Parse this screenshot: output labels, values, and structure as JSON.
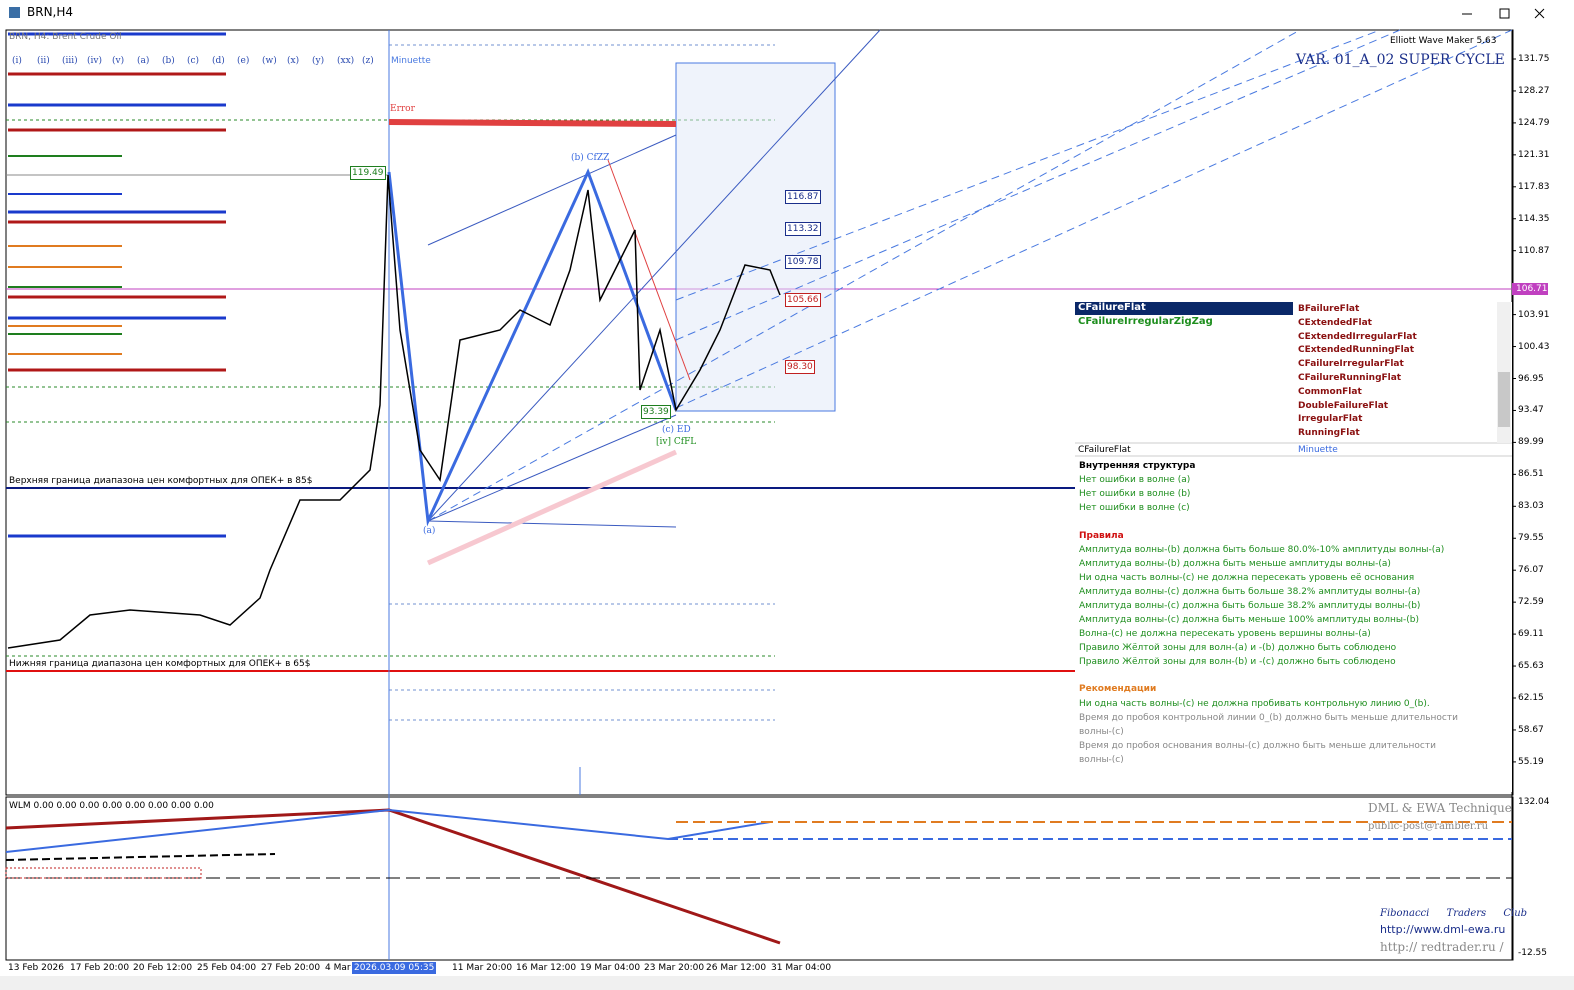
{
  "window": {
    "title": "BRN,H4"
  },
  "chart": {
    "symbol_label": "BRN, H4: Brent Crude Oil",
    "wave_buttons": [
      "(i)",
      "(ii)",
      "(iii)",
      "(iv)",
      "(v)",
      "(a)",
      "(b)",
      "(c)",
      "(d)",
      "(e)",
      "(w)",
      "(x)",
      "(y)",
      "(xx)",
      "(z)"
    ],
    "degree": "Minuette",
    "tool_name": "Elliott Wave Maker 5.63",
    "variant": "VAR. 01_A_02 SUPER CYCLE",
    "upper_line_label": "Верхняя граница диапазона цен комфортных для ОПЕК+ в 85$",
    "lower_line_label": "Нижняя граница диапазона цен комфортных для ОПЕК+ в 65$",
    "price_labels": [
      "119.49",
      "116.87",
      "113.32",
      "109.78",
      "105.66",
      "98.30",
      "93.39"
    ],
    "wave_labels": [
      "(b) CfZZ",
      "(c) ED",
      "[iv] CfFL",
      "(a)",
      "Error"
    ]
  },
  "price_axis": {
    "ticks": [
      131.75,
      128.27,
      124.79,
      121.31,
      117.83,
      114.35,
      110.87,
      103.91,
      100.43,
      96.95,
      93.47,
      89.99,
      86.51,
      83.03,
      79.55,
      76.07,
      72.59,
      69.11,
      65.63,
      62.15,
      58.67,
      55.19
    ],
    "current": 106.71
  },
  "time_axis": {
    "labels": [
      "13 Feb 2026",
      "17 Feb 20:00",
      "20 Feb 12:00",
      "25 Feb 04:00",
      "27 Feb 20:00",
      "4 Mar",
      "2026.03.09 05:35",
      "11 Mar 20:00",
      "16 Mar 12:00",
      "19 Mar 04:00",
      "23 Mar 20:00",
      "26 Mar 12:00",
      "31 Mar 04:00"
    ]
  },
  "panel": {
    "selected": "CFailureFlat",
    "alternative": "CFailureIrregularZigZag",
    "options": [
      "BFailureFlat",
      "CExtendedFlat",
      "CExtendedIrregularFlat",
      "CExtendedRunningFlat",
      "CFailureIrregularFlat",
      "CFailureRunningFlat",
      "CommonFlat",
      "DoubleFailureFlat",
      "IrregularFlat",
      "RunningFlat"
    ],
    "summary": [
      "CFailureFlat",
      "Minuette"
    ],
    "structure_title": "Внутренняя структура",
    "structure": [
      "Нет ошибки в волне (a)",
      "Нет ошибки в волне (b)",
      "Нет ошибки в волне (c)"
    ],
    "rules_title": "Правила",
    "rules": [
      "Амплитуда волны-(b) должна быть больше 80.0%-10% амплитуды волны-(a)",
      "Амплитуда волны-(b) должна быть меньше амплитуды волны-(a)",
      "Ни одна часть волны-(c) не должна пересекать уровень её основания",
      "Амплитуда волны-(c) должна быть больше 38.2% амплитуды волны-(a)",
      "Амплитуда волны-(c) должна быть больше 38.2% амплитуды волны-(b)",
      "Амплитуда волны-(c) должна быть меньше 100% амплитуды волны-(b)",
      "Волна-(c) не должна пересекать уровень вершины волны-(a)",
      "Правило Жёлтой зоны для волн-(a) и -(b) должно быть соблюдено",
      "Правило Жёлтой зоны для волн-(b) и -(c) должно быть соблюдено"
    ],
    "recommendations_title": "Рекомендации",
    "recommendations": [
      "Ни одна часть волны-(c) не должна пробивать контрольную линию 0_(b).",
      "Время до пробоя контрольной линии 0_(b) должно быть меньше длительности волны-(c)",
      "Время до пробоя основания волны-(c) должно быть меньше длительности волны-(c)"
    ]
  },
  "indicator": {
    "label": "WLM 0.00 0.00 0.00 0.00 0.00 0.00 0.00 0.00",
    "axis_top": "132.04",
    "axis_bottom": "-12.55",
    "credits": [
      "DML & EWA Technique",
      "public-post@rambler.ru",
      "Fibonacci Traders Club",
      "http://www.dml-ewa.ru",
      "http:// redtrader.ru /"
    ]
  }
}
